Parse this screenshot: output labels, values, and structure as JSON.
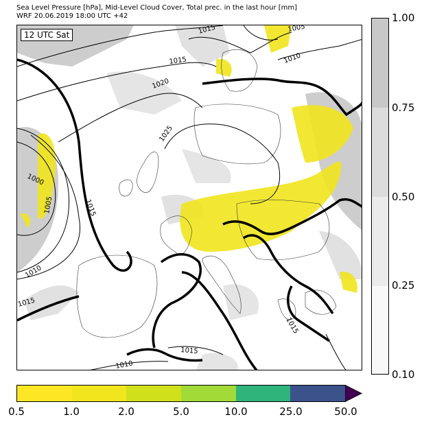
{
  "title": {
    "line1": "Sea Level Pressure [hPa], Mid-Level Cloud Cover, Total prec. in the last hour [mm]",
    "line2": "WRF 20.06.2019 18:00 UTC +42"
  },
  "time_label": "12 UTC Sat",
  "isobar_labels": [
    "1015",
    "1005",
    "1010",
    "1015",
    "1020",
    "1025",
    "1000",
    "1005",
    "1015",
    "1010",
    "1015",
    "1015",
    "1015",
    "1010"
  ],
  "cloud_colorbar": {
    "ticks": [
      "1.00",
      "0.75",
      "0.50",
      "0.25",
      "0.10"
    ],
    "colors": [
      "#c8c8c8",
      "#dcdcdc",
      "#ebebeb",
      "#f8f8f8"
    ]
  },
  "precip_colorbar": {
    "ticks": [
      "0.5",
      "1.0",
      "2.0",
      "5.0",
      "10.0",
      "25.0",
      "50.0"
    ],
    "colors": [
      "#fde725",
      "#f1e51d",
      "#d0e11c",
      "#a2da37",
      "#2fb47c",
      "#3b528b",
      "#440154"
    ]
  }
}
